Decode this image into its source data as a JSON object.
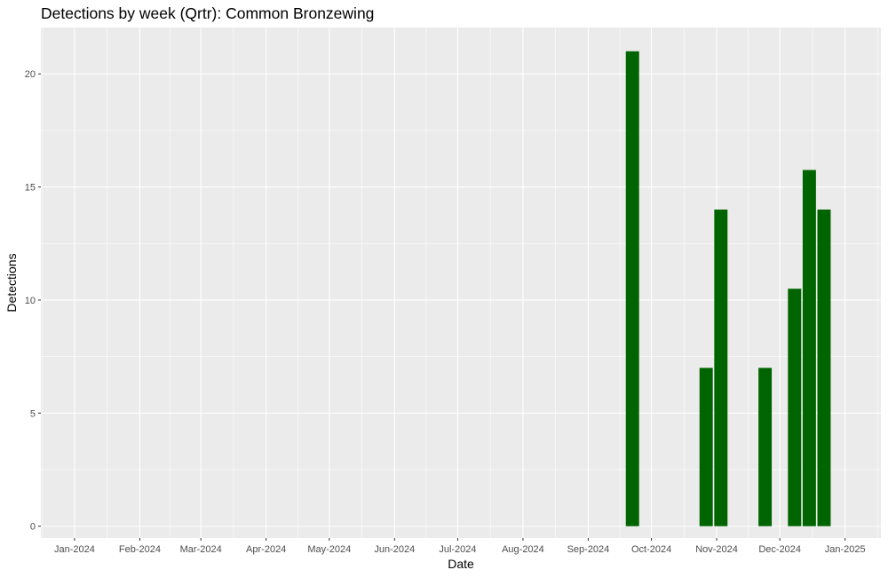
{
  "chart_data": {
    "type": "bar",
    "title": "Detections by week (Qrtr): Common Bronzewing",
    "xlabel": "Date",
    "ylabel": "Detections",
    "x_ticks": [
      "Jan-2024",
      "Feb-2024",
      "Mar-2024",
      "Apr-2024",
      "May-2024",
      "Jun-2024",
      "Jul-2024",
      "Aug-2024",
      "Sep-2024",
      "Oct-2024",
      "Nov-2024",
      "Dec-2024",
      "Jan-2025"
    ],
    "y_ticks": [
      0,
      5,
      10,
      15,
      20
    ],
    "ylim": [
      -0.525,
      22.05
    ],
    "xlim": [
      "2023-12-16",
      "2025-01-18"
    ],
    "grid": true,
    "bar_color": "#006400",
    "panel_color": "#ebebeb",
    "bars": [
      {
        "week_start": "2024-09-22",
        "value": 21
      },
      {
        "week_start": "2024-10-27",
        "value": 7
      },
      {
        "week_start": "2024-11-03",
        "value": 14
      },
      {
        "week_start": "2024-11-24",
        "value": 7
      },
      {
        "week_start": "2024-12-08",
        "value": 10.5
      },
      {
        "week_start": "2024-12-15",
        "value": 15.75
      },
      {
        "week_start": "2024-12-22",
        "value": 14
      }
    ]
  }
}
